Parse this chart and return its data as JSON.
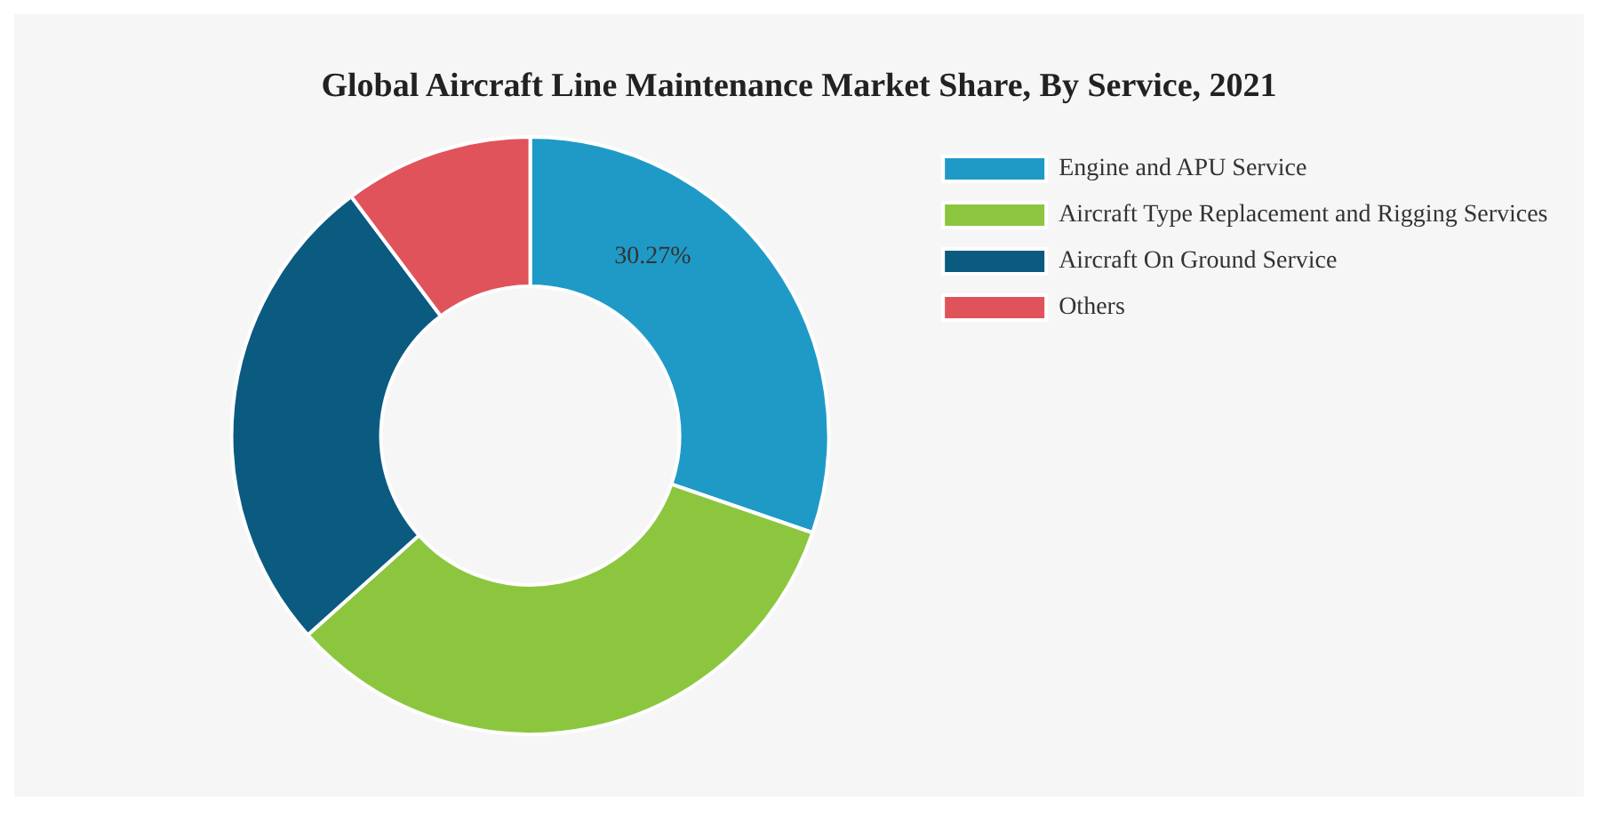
{
  "chart_data": {
    "type": "donut",
    "title": "Global Aircraft Line Maintenance Market Share, By Service, 2021",
    "categories": [
      "Engine and APU Service",
      "Aircraft Type Replacement and Rigging Services",
      "Aircraft On Ground Service",
      "Others"
    ],
    "values": [
      30.27,
      33.1,
      26.4,
      10.23
    ],
    "colors": [
      "#1f9ac7",
      "#8cc63f",
      "#0b5a80",
      "#e0535a"
    ],
    "value_labels": [
      "30.27%",
      null,
      null,
      null
    ],
    "legend": "right"
  }
}
